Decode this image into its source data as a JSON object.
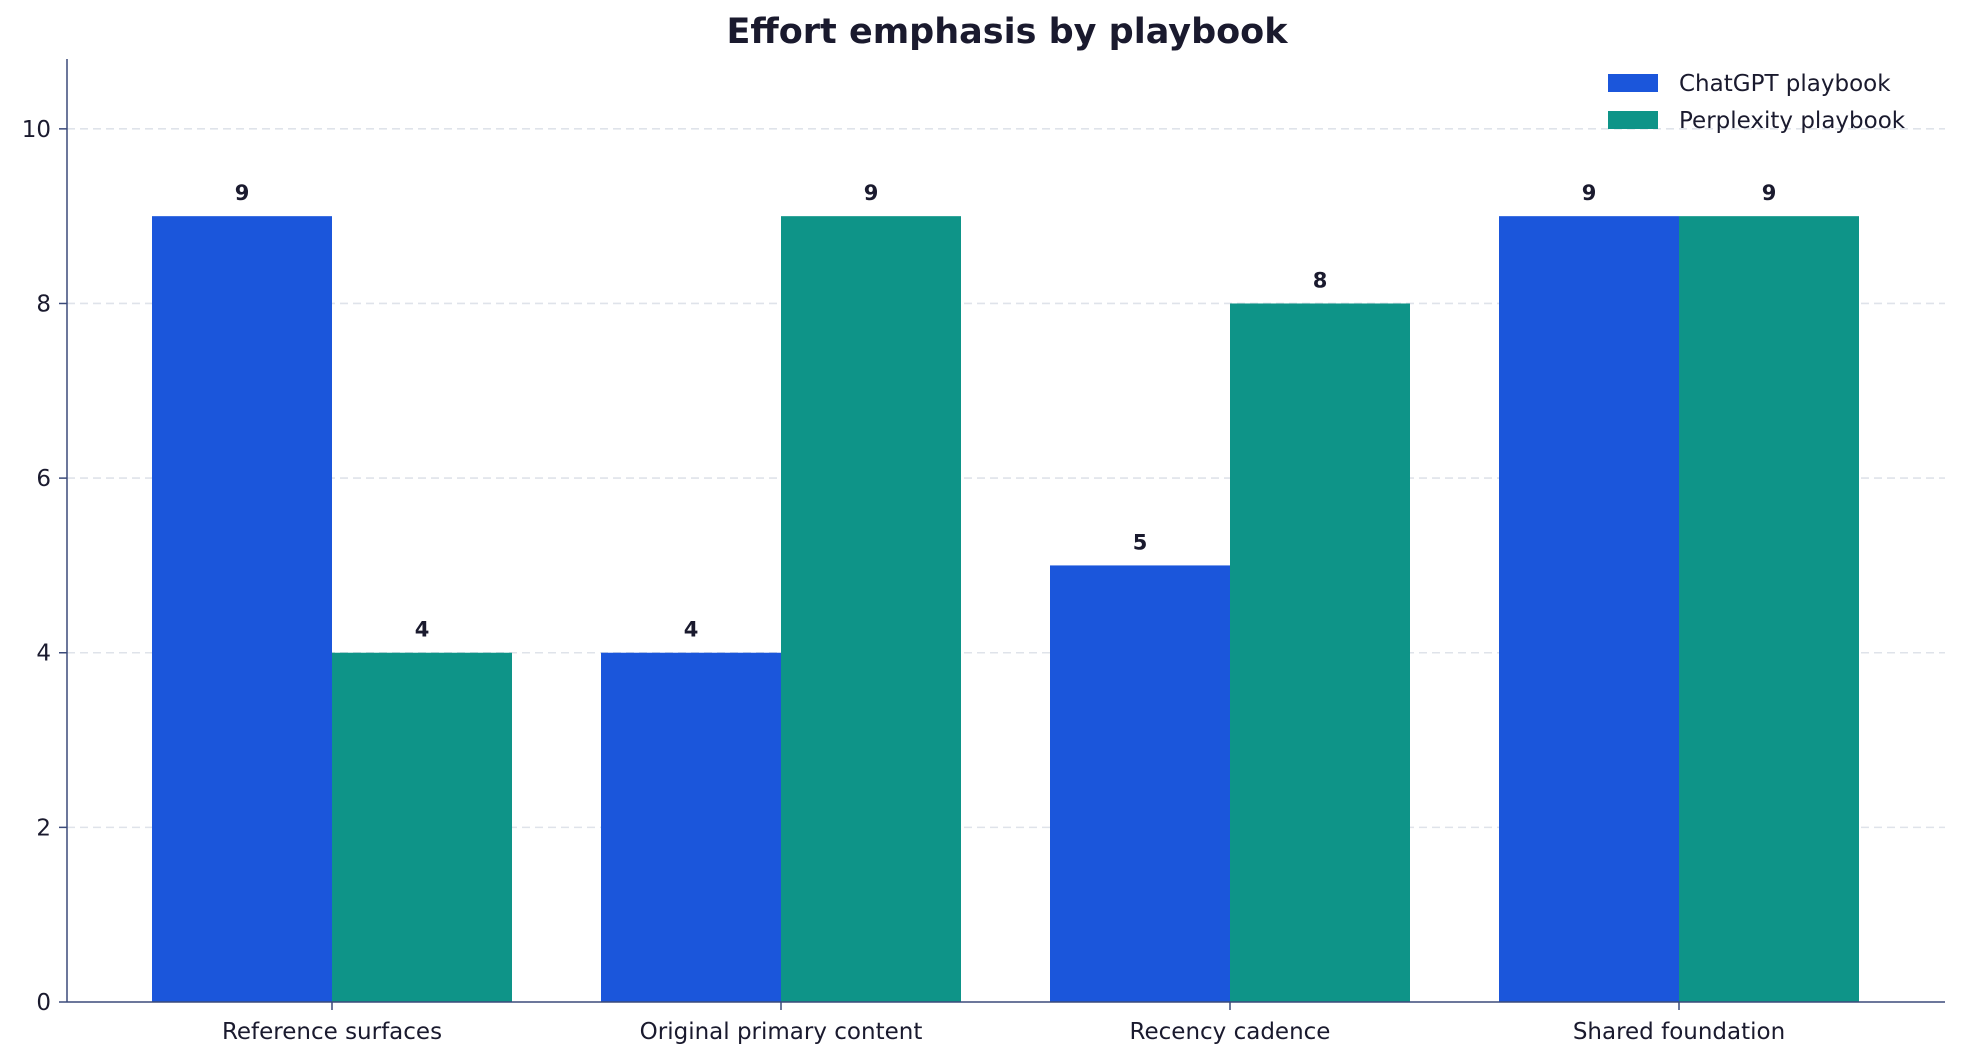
{
  "chart_data": {
    "type": "bar",
    "title": "Effort emphasis by playbook",
    "xlabel": "",
    "ylabel": "",
    "categories": [
      "Reference surfaces",
      "Original primary content",
      "Recency cadence",
      "Shared foundation"
    ],
    "series": [
      {
        "name": "ChatGPT playbook",
        "values": [
          9,
          4,
          5,
          9
        ],
        "color": "#1b56db"
      },
      {
        "name": "Perplexity playbook",
        "values": [
          4,
          9,
          8,
          9
        ],
        "color": "#0e9488"
      }
    ],
    "ylim": [
      0,
      10.8
    ],
    "yticks": [
      0,
      2,
      4,
      6,
      8,
      10
    ],
    "grid": "y-dashed",
    "legend_position": "top-right",
    "axis_color": "#3b4a7a",
    "grid_color": "#dfe3ea"
  }
}
